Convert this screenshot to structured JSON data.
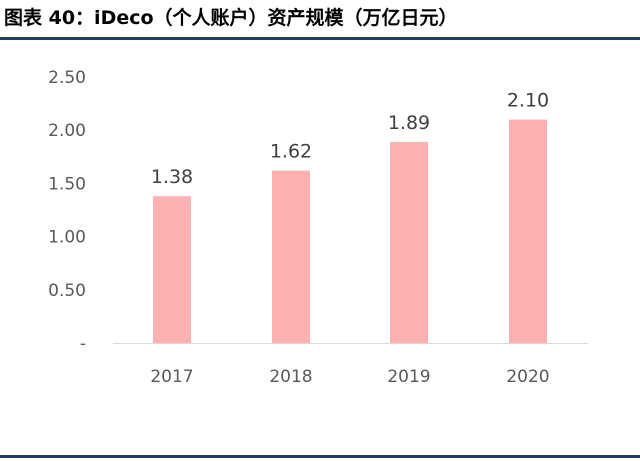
{
  "figure": {
    "title": "图表 40：iDeco（个人账户）资产规模（万亿日元）"
  },
  "colors": {
    "bar": "#ffb0b0",
    "axis": "#d9d9d9",
    "rule": "#1f3c64"
  },
  "chart_data": {
    "type": "bar",
    "title": "",
    "xlabel": "",
    "ylabel": "",
    "categories": [
      "2017",
      "2018",
      "2019",
      "2020"
    ],
    "values": [
      1.38,
      1.62,
      1.89,
      2.1
    ],
    "data_labels": [
      "1.38",
      "1.62",
      "1.89",
      "2.10"
    ],
    "ylim": [
      0,
      2.5
    ],
    "yticks": [
      0,
      0.5,
      1.0,
      1.5,
      2.0,
      2.5
    ],
    "ytick_labels": [
      "-",
      "0.50",
      "1.00",
      "1.50",
      "2.00",
      "2.50"
    ],
    "grid": false,
    "legend": "none"
  }
}
